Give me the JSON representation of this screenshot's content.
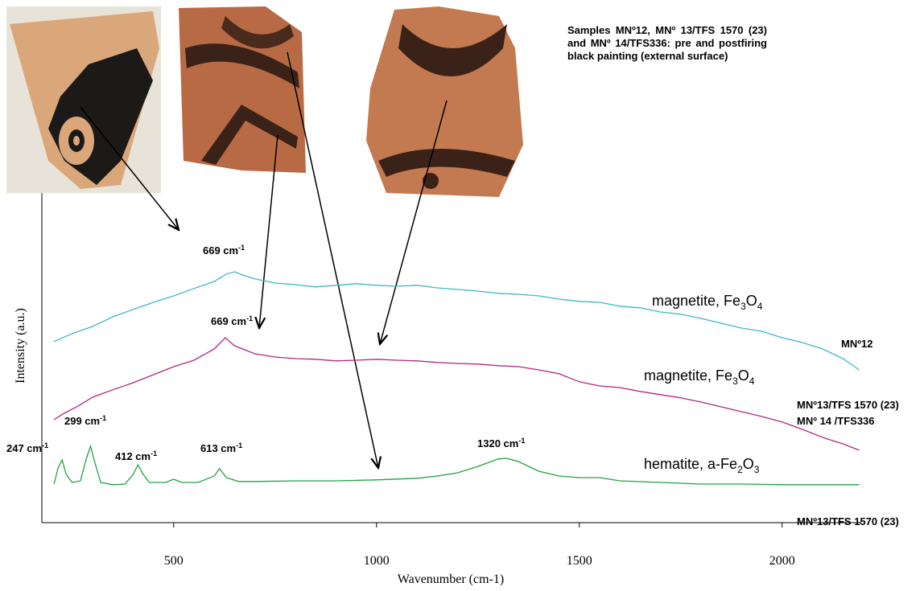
{
  "chart_data": {
    "type": "line",
    "note": "Samples MNº12, MNº 13/TFS 1570 (23) and MNº 14/TFS336: pre and postfiring black painting (external surface)",
    "x_label": "Wavenumber (cm-1)",
    "y_label": "Intensity (a.u.)",
    "xlim": [
      175,
      2195
    ],
    "xticks": [
      500,
      1000,
      1500,
      2000
    ],
    "ylim": [
      0,
      100
    ],
    "series": [
      {
        "color": "#3db8c0",
        "label_parts": [
          "magnetite, Fe",
          "3",
          "O",
          "4"
        ],
        "x": [
          205,
          250,
          300,
          350,
          400,
          450,
          500,
          550,
          600,
          630,
          650,
          670,
          700,
          750,
          800,
          850,
          900,
          950,
          1000,
          1050,
          1100,
          1150,
          1200,
          1250,
          1300,
          1350,
          1400,
          1450,
          1500,
          1550,
          1600,
          1650,
          1700,
          1750,
          1800,
          1850,
          1900,
          1950,
          2000,
          2050,
          2100,
          2150,
          2190
        ],
        "values": [
          56.3,
          58.8,
          61,
          64,
          66.3,
          68.5,
          70.5,
          72.8,
          75,
          77.3,
          78,
          77,
          75.8,
          74.5,
          74,
          73.3,
          73.8,
          74.3,
          73.8,
          73.5,
          73.8,
          73,
          72.5,
          72,
          71.3,
          71,
          70.5,
          69.5,
          68.8,
          68.5,
          67.3,
          66.8,
          65.5,
          64.8,
          63.5,
          62,
          60.5,
          59.5,
          57.5,
          56,
          54,
          51,
          47.5
        ]
      },
      {
        "color": "#b0287f",
        "label_parts": [
          "magnetite, Fe",
          "3",
          "O",
          "4"
        ],
        "x": [
          205,
          230,
          265,
          300,
          350,
          400,
          450,
          500,
          550,
          600,
          627,
          650,
          700,
          750,
          800,
          850,
          900,
          950,
          1000,
          1050,
          1100,
          1150,
          1200,
          1250,
          1300,
          1350,
          1400,
          1450,
          1500,
          1550,
          1600,
          1650,
          1700,
          1750,
          1800,
          1850,
          1900,
          1950,
          2000,
          2050,
          2100,
          2150,
          2190
        ],
        "values": [
          32,
          34,
          36.3,
          39,
          41.3,
          43.5,
          46,
          48.5,
          50.5,
          54,
          57.5,
          55,
          52.5,
          51.5,
          51,
          50.8,
          50.3,
          50.5,
          50.8,
          50.5,
          50.3,
          49.8,
          49.5,
          49.3,
          48.8,
          48.5,
          47.5,
          46.3,
          43.8,
          42.5,
          42,
          40.8,
          39.8,
          38.8,
          37.5,
          36,
          34.5,
          33,
          31.3,
          29,
          26.5,
          24.5,
          22.5
        ]
      },
      {
        "color": "#22a046",
        "label_parts": [
          "hematite, a-Fe",
          "2",
          "O",
          "3"
        ],
        "x": [
          205,
          215,
          225,
          235,
          250,
          270,
          285,
          295,
          305,
          320,
          350,
          380,
          400,
          412,
          425,
          440,
          480,
          500,
          520,
          560,
          600,
          613,
          630,
          660,
          700,
          800,
          900,
          1000,
          1100,
          1150,
          1200,
          1250,
          1300,
          1320,
          1350,
          1400,
          1450,
          1500,
          1550,
          1600,
          1700,
          1800,
          1900,
          2000,
          2100,
          2190
        ],
        "values": [
          12,
          17,
          19.5,
          15,
          12.5,
          13,
          20,
          23.8,
          19,
          12.5,
          11.8,
          12,
          15,
          18,
          15,
          12.5,
          12.5,
          13.5,
          12.5,
          12.5,
          14.5,
          16.8,
          14,
          12.8,
          12.8,
          13,
          13,
          13.3,
          13.8,
          14.5,
          15.5,
          17.5,
          19.8,
          20,
          19,
          16,
          14.5,
          14,
          14,
          13,
          12.5,
          12,
          12,
          11.8,
          11.8,
          11.8
        ]
      }
    ],
    "annotations": [
      {
        "text": "669 cm",
        "sup": "-1"
      },
      {
        "text": "669 cm",
        "sup": "-1"
      },
      {
        "text": "299 cm",
        "sup": "-1"
      },
      {
        "text": "247 cm",
        "sup": "-1"
      },
      {
        "text": "412 cm",
        "sup": "-1"
      },
      {
        "text": "613 cm",
        "sup": "-1"
      },
      {
        "text": "1320 cm",
        "sup": "-1"
      }
    ],
    "sample_labels": [
      "MNº12",
      "MNº13/TFS 1570 (23)",
      "MNº 14 /TFS336",
      "MNº13/TFS 1570 (23)"
    ]
  }
}
